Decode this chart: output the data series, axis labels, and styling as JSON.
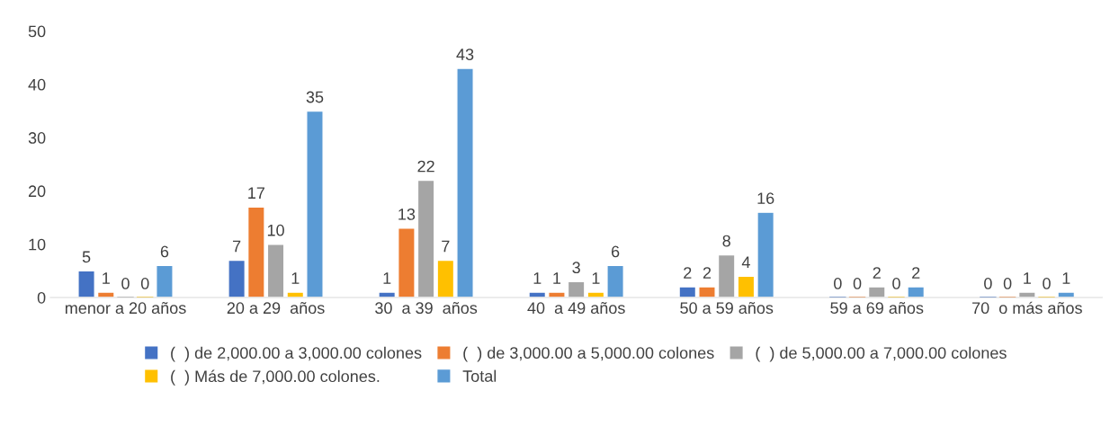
{
  "chart_data": {
    "type": "bar",
    "categories": [
      "menor a 20 años",
      "20 a 29  años",
      "30  a 39  años",
      "40  a 49 años",
      "50 a 59 años",
      "59 a 69 años",
      "70  o más años"
    ],
    "series": [
      {
        "name": "(  ) de 2,000.00 a 3,000.00 colones",
        "color": "#4472c4",
        "values": [
          5,
          7,
          1,
          1,
          2,
          0,
          0
        ]
      },
      {
        "name": "(  ) de 3,000.00 a 5,000.00 colones",
        "color": "#ed7d31",
        "values": [
          1,
          17,
          13,
          1,
          2,
          0,
          0
        ]
      },
      {
        "name": "(  ) de 5,000.00 a 7,000.00 colones",
        "color": "#a5a5a5",
        "values": [
          0,
          10,
          22,
          3,
          8,
          2,
          1
        ]
      },
      {
        "name": "(  ) Más de 7,000.00 colones.",
        "color": "#ffc000",
        "values": [
          0,
          1,
          7,
          1,
          4,
          0,
          0
        ]
      },
      {
        "name": "Total",
        "color": "#5b9bd5",
        "values": [
          6,
          35,
          43,
          6,
          16,
          2,
          1
        ]
      }
    ],
    "ylim": [
      0,
      50
    ],
    "yticks": [
      0,
      10,
      20,
      30,
      40,
      50
    ],
    "data_labels": true,
    "legend": "bottom",
    "grid": false
  }
}
